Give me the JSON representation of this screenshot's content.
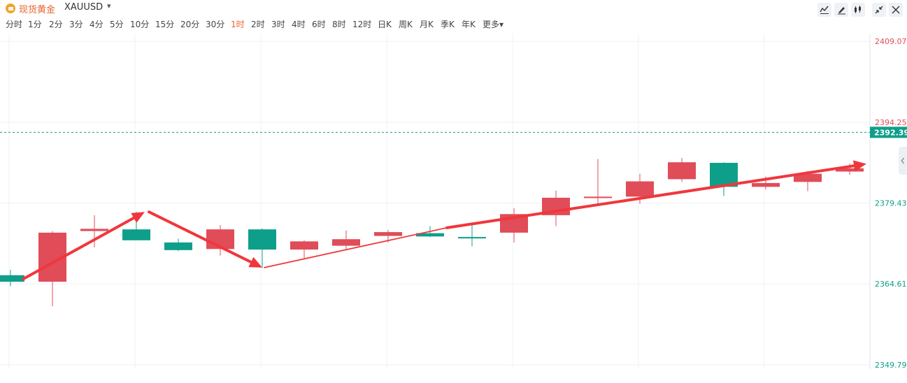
{
  "header": {
    "symbol_name": "现货黄金",
    "symbol_code": "XAUUSD",
    "caret": "▾",
    "tools": [
      "line-tool-icon",
      "pen-tool-icon",
      "candlestick-tool-icon",
      "collapse-icon",
      "close-icon"
    ]
  },
  "periods": {
    "items": [
      "分时",
      "1分",
      "2分",
      "3分",
      "4分",
      "5分",
      "10分",
      "15分",
      "20分",
      "30分",
      "1时",
      "2时",
      "3时",
      "4时",
      "6时",
      "8时",
      "12时",
      "日K",
      "周K",
      "月K",
      "季K",
      "年K",
      "更多▾"
    ],
    "active": "1时"
  },
  "colors": {
    "up": "#e04c58",
    "down": "#0e9f8a",
    "arrow": "#f0373c",
    "grid": "#eef0f3",
    "last_price_bg": "#0e9f8a",
    "upper_label": "#e04c58",
    "lower_label": "#0e9f8a"
  },
  "chart_data": {
    "type": "candlestick",
    "y_ticks": [
      2409.07,
      2394.25,
      2379.43,
      2364.61,
      2349.79
    ],
    "y_tick_labels": [
      "2409.07",
      "2394.25",
      "2379.43",
      "2364.61",
      "2349.79"
    ],
    "ylim": [
      2349.0,
      2410.5
    ],
    "last_price": 2392.39,
    "last_price_label": "2392.39",
    "candles": [
      {
        "open": 2366.2,
        "close": 2365.0,
        "high": 2367.2,
        "low": 2364.2
      },
      {
        "open": 2365.0,
        "close": 2374.0,
        "high": 2374.3,
        "low": 2360.5
      },
      {
        "open": 2374.3,
        "close": 2374.7,
        "high": 2377.2,
        "low": 2371.3
      },
      {
        "open": 2374.6,
        "close": 2372.6,
        "high": 2377.8,
        "low": 2372.6
      },
      {
        "open": 2372.2,
        "close": 2370.8,
        "high": 2372.9,
        "low": 2370.6
      },
      {
        "open": 2371.0,
        "close": 2374.6,
        "high": 2375.4,
        "low": 2369.8
      },
      {
        "open": 2374.6,
        "close": 2370.9,
        "high": 2374.8,
        "low": 2367.6
      },
      {
        "open": 2370.9,
        "close": 2372.4,
        "high": 2372.6,
        "low": 2369.3
      },
      {
        "open": 2371.6,
        "close": 2372.8,
        "high": 2374.4,
        "low": 2370.8
      },
      {
        "open": 2373.4,
        "close": 2374.1,
        "high": 2374.5,
        "low": 2372.2
      },
      {
        "open": 2373.9,
        "close": 2373.3,
        "high": 2375.2,
        "low": 2373.2
      },
      {
        "open": 2373.2,
        "close": 2373.1,
        "high": 2375.4,
        "low": 2371.5
      },
      {
        "open": 2374.0,
        "close": 2377.4,
        "high": 2378.5,
        "low": 2372.2
      },
      {
        "open": 2377.2,
        "close": 2380.4,
        "high": 2381.7,
        "low": 2375.2
      },
      {
        "open": 2380.4,
        "close": 2380.6,
        "high": 2387.5,
        "low": 2379.0
      },
      {
        "open": 2380.6,
        "close": 2383.4,
        "high": 2384.8,
        "low": 2379.3
      },
      {
        "open": 2383.8,
        "close": 2386.9,
        "high": 2387.7,
        "low": 2383.3
      },
      {
        "open": 2386.8,
        "close": 2382.4,
        "high": 2386.9,
        "low": 2380.7
      },
      {
        "open": 2382.4,
        "close": 2383.1,
        "high": 2384.3,
        "low": 2381.9
      },
      {
        "open": 2383.3,
        "close": 2384.8,
        "high": 2385.3,
        "low": 2381.6
      },
      {
        "open": 2385.2,
        "close": 2385.8,
        "high": 2386.7,
        "low": 2384.6
      }
    ],
    "arrows": [
      {
        "from": [
          0.3,
          2365.5
        ],
        "to": [
          3.2,
          2377.8
        ],
        "thick": true
      },
      {
        "from": [
          3.3,
          2377.8
        ],
        "to": [
          6.0,
          2367.6
        ],
        "thick": true
      },
      {
        "from": [
          6.05,
          2367.6
        ],
        "to": [
          10.4,
          2374.9
        ],
        "thick": false
      },
      {
        "from": [
          10.4,
          2374.9
        ],
        "to": [
          20.4,
          2386.6
        ],
        "thick": true
      }
    ]
  }
}
